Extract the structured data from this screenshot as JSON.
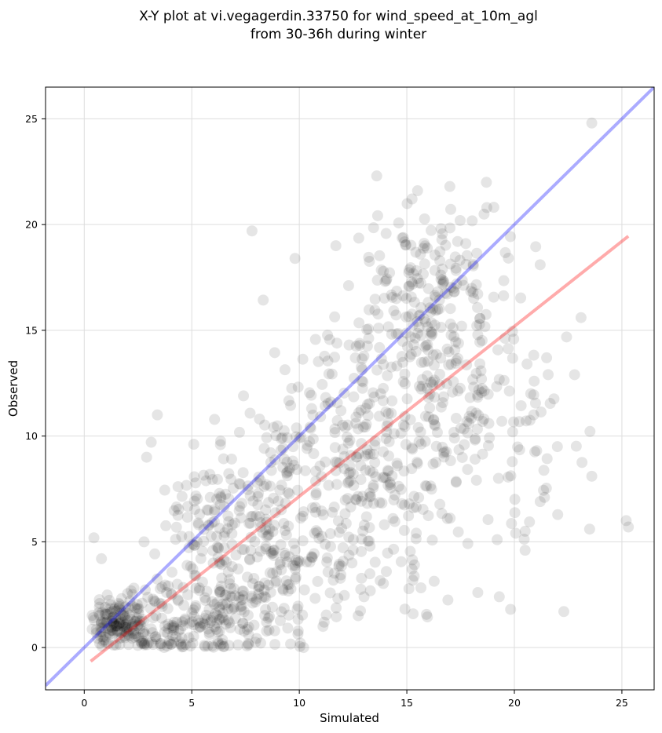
{
  "chart_data": {
    "type": "scatter",
    "title_line1": "X-Y plot at vi.vegagerdin.33750 for wind_speed_at_10m_agl",
    "title_line2": "from 30-36h during winter",
    "xlabel": "Simulated",
    "ylabel": "Observed",
    "xlim": [
      -1.8,
      26.5
    ],
    "ylim": [
      -2.0,
      26.5
    ],
    "xticks": [
      0,
      5,
      10,
      15,
      20,
      25
    ],
    "yticks": [
      0,
      5,
      10,
      15,
      20,
      25
    ],
    "grid": true,
    "point_color": "#000000",
    "identity_line": {
      "color": "#0000ff",
      "from": [
        -1.8,
        -1.8
      ],
      "to": [
        26.5,
        26.5
      ]
    },
    "fit_line": {
      "color": "#ff0000",
      "from": [
        0.3,
        -0.65
      ],
      "to": [
        25.3,
        19.45
      ]
    },
    "clusters": [
      {
        "cx": 1.4,
        "cy": 1.2,
        "sx": 0.5,
        "sy": 0.55,
        "n": 110,
        "seed": 11
      },
      {
        "cx": 3.5,
        "cy": 1.1,
        "sx": 1.2,
        "sy": 0.9,
        "n": 120,
        "seed": 12
      },
      {
        "cx": 6.0,
        "cy": 1.3,
        "sx": 1.4,
        "sy": 1.1,
        "n": 110,
        "seed": 13
      },
      {
        "cx": 8.5,
        "cy": 2.5,
        "sx": 1.3,
        "sy": 1.6,
        "n": 80,
        "seed": 14
      },
      {
        "cx": 6.0,
        "cy": 5.5,
        "sx": 1.6,
        "sy": 2.0,
        "n": 100,
        "seed": 15
      },
      {
        "cx": 9.0,
        "cy": 7.5,
        "sx": 1.8,
        "sy": 2.4,
        "n": 130,
        "seed": 16
      },
      {
        "cx": 11.5,
        "cy": 4.5,
        "sx": 1.5,
        "sy": 2.0,
        "n": 80,
        "seed": 17
      },
      {
        "cx": 12.5,
        "cy": 11.0,
        "sx": 1.8,
        "sy": 2.6,
        "n": 140,
        "seed": 18
      },
      {
        "cx": 14.5,
        "cy": 7.0,
        "sx": 1.6,
        "sy": 2.6,
        "n": 90,
        "seed": 19
      },
      {
        "cx": 16.0,
        "cy": 17.0,
        "sx": 1.4,
        "sy": 1.8,
        "n": 150,
        "seed": 20
      },
      {
        "cx": 16.5,
        "cy": 12.0,
        "sx": 1.6,
        "sy": 2.8,
        "n": 110,
        "seed": 21
      },
      {
        "cx": 18.5,
        "cy": 13.5,
        "sx": 1.6,
        "sy": 3.5,
        "n": 60,
        "seed": 22
      },
      {
        "cx": 20.5,
        "cy": 10.5,
        "sx": 1.2,
        "sy": 3.0,
        "n": 25,
        "seed": 23
      }
    ],
    "outliers": [
      [
        23.6,
        24.8
      ],
      [
        7.8,
        19.7
      ],
      [
        13.6,
        22.3
      ],
      [
        25.2,
        6.0
      ],
      [
        25.3,
        5.7
      ],
      [
        23.5,
        5.6
      ],
      [
        23.6,
        8.1
      ],
      [
        22.3,
        1.7
      ],
      [
        21.5,
        13.7
      ],
      [
        22.8,
        12.9
      ],
      [
        23.1,
        15.6
      ],
      [
        3.4,
        11.0
      ],
      [
        2.9,
        9.0
      ],
      [
        19.3,
        2.4
      ],
      [
        19.2,
        5.1
      ],
      [
        20.5,
        4.6
      ],
      [
        20.5,
        5.5
      ],
      [
        21.2,
        18.1
      ],
      [
        18.7,
        22.0
      ],
      [
        17.0,
        21.8
      ],
      [
        15.5,
        21.6
      ],
      [
        9.8,
        18.4
      ],
      [
        10.2,
        0.0
      ],
      [
        11.7,
        19.0
      ],
      [
        0.8,
        4.2
      ],
      [
        18.3,
        2.6
      ],
      [
        22.0,
        9.5
      ],
      [
        21.4,
        7.1
      ],
      [
        21.2,
        6.9
      ],
      [
        20.9,
        11.0
      ]
    ]
  }
}
